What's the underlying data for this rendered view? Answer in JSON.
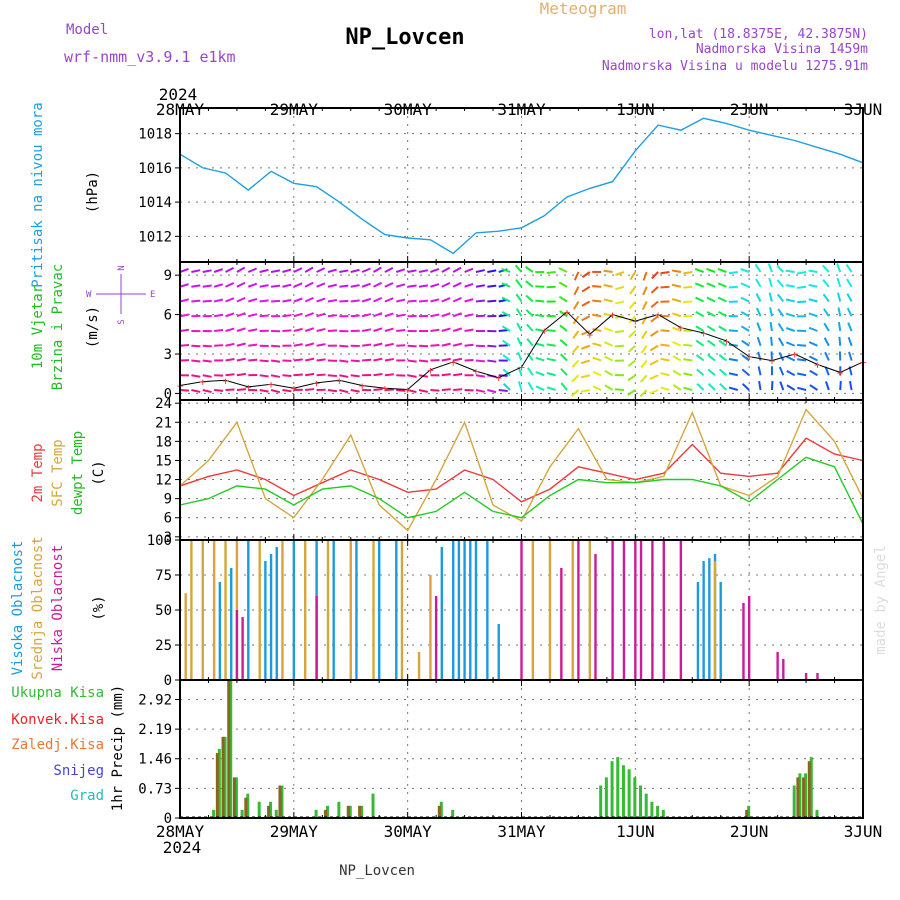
{
  "header": {
    "model_label": "Model",
    "model_name": "wrf-nmm_v3.9.1 e1km",
    "station": "NP_Lovcen",
    "meteogram_label": "Meteogram",
    "lonlat": "lon,lat (18.8375E, 42.3875N)",
    "elevation": "Nadmorska Visina 1459m",
    "model_elevation": "Nadmorska Visina u modelu 1275.91m",
    "footer_station": "NP_Lovcen",
    "credit": "made by Angel"
  },
  "colors": {
    "pressure": "#1e9fe0",
    "temp2m": "#ee3a3a",
    "sfc_temp": "#d6a63c",
    "dewpoint": "#22cc22",
    "high_cloud": "#1a9be0",
    "mid_cloud": "#d6a63c",
    "low_cloud": "#cc1a99",
    "total_precip": "#33bb33",
    "conv_precip": "#ee2222",
    "frozen_precip": "#ee7733",
    "snow": "#4444dd",
    "hail": "#22bbbb",
    "wind_speed_line": "#000000",
    "wind_speed_markers": "#ee3a3a"
  },
  "time_axis": {
    "year": "2024",
    "labels": [
      "28MAY",
      "29MAY",
      "30MAY",
      "31MAY",
      "1JUN",
      "2JUN",
      "3JUN"
    ]
  },
  "panels": {
    "pressure": {
      "label": "Pritisak na nivou mora",
      "unit": "(hPa)"
    },
    "wind": {
      "label1": "10m Vjetar",
      "label2": "Brzina i Pravac",
      "unit": "(m/s)",
      "compass_n": "N",
      "compass_s": "S",
      "compass_w": "W",
      "compass_e": "E"
    },
    "temperature": {
      "label1": "2m Temp",
      "label2": "SFC Temp",
      "label3": "dewpt Temp",
      "unit": "(C)"
    },
    "cloud": {
      "label1": "Visoka Oblacnost",
      "label2": "Srednja Oblacnost",
      "label3": "Niska Oblacnost",
      "unit": "(%)"
    },
    "precip": {
      "legend": [
        "Ukupna Kisa",
        "Konvek.Kisa",
        "Zaledj.Kisa",
        "Snijeg",
        "Grad"
      ],
      "unit": "1hr Precip (mm)"
    }
  },
  "chart_data": [
    {
      "type": "line",
      "title": "Pritisak na nivou mora",
      "ylabel": "(hPa)",
      "ylim": [
        1010.5,
        1019.5
      ],
      "yticks": [
        1012,
        1014,
        1016,
        1018
      ],
      "x_unit": "days since 28MAY 00UTC",
      "series": [
        {
          "name": "Pritisak na nivou mora",
          "x": [
            0,
            0.2,
            0.4,
            0.6,
            0.8,
            1.0,
            1.2,
            1.4,
            1.6,
            1.8,
            2.0,
            2.2,
            2.4,
            2.6,
            2.8,
            3.0,
            3.2,
            3.4,
            3.6,
            3.8,
            4.0,
            4.2,
            4.4,
            4.6,
            4.8,
            5.0,
            5.2,
            5.4,
            5.6,
            5.8,
            6.0
          ],
          "y": [
            1016.8,
            1016.0,
            1015.7,
            1014.7,
            1015.8,
            1015.1,
            1014.9,
            1014.0,
            1013.0,
            1012.1,
            1011.9,
            1011.8,
            1011.0,
            1012.2,
            1012.3,
            1012.5,
            1013.2,
            1014.3,
            1014.8,
            1015.2,
            1017.0,
            1018.5,
            1018.2,
            1018.9,
            1018.6,
            1018.2,
            1017.9,
            1017.6,
            1017.2,
            1016.8,
            1016.3
          ]
        }
      ]
    },
    {
      "type": "line",
      "title": "10m Vjetar Brzina i Pravac",
      "ylabel": "(m/s)",
      "ylim": [
        -0.5,
        10
      ],
      "yticks": [
        0,
        3,
        6,
        9
      ],
      "series": [
        {
          "name": "Brzina",
          "x": [
            0,
            0.2,
            0.4,
            0.6,
            0.8,
            1.0,
            1.2,
            1.4,
            1.6,
            1.8,
            2.0,
            2.2,
            2.4,
            2.6,
            2.8,
            3.0,
            3.2,
            3.4,
            3.6,
            3.8,
            4.0,
            4.2,
            4.4,
            4.6,
            4.8,
            5.0,
            5.2,
            5.4,
            5.6,
            5.8,
            6.0
          ],
          "y": [
            0.6,
            0.9,
            1.0,
            0.5,
            0.7,
            0.4,
            0.8,
            1.0,
            0.6,
            0.4,
            0.3,
            1.8,
            2.4,
            1.7,
            1.2,
            2.0,
            4.8,
            6.2,
            4.5,
            6.0,
            5.5,
            6.0,
            5.0,
            4.6,
            4.0,
            2.8,
            2.5,
            3.0,
            2.2,
            1.6,
            2.4
          ]
        }
      ]
    },
    {
      "type": "line",
      "title": "Temperature",
      "ylabel": "(C)",
      "ylim": [
        2.5,
        24.5
      ],
      "yticks": [
        3,
        6,
        9,
        12,
        15,
        18,
        21,
        24
      ],
      "series": [
        {
          "name": "2m Temp",
          "x": [
            0,
            0.25,
            0.5,
            0.75,
            1.0,
            1.25,
            1.5,
            1.75,
            2.0,
            2.25,
            2.5,
            2.75,
            3.0,
            3.25,
            3.5,
            3.75,
            4.0,
            4.25,
            4.5,
            4.75,
            5.0,
            5.25,
            5.5,
            5.75,
            6.0
          ],
          "y": [
            11.0,
            12.5,
            13.5,
            12.0,
            9.5,
            11.5,
            13.5,
            12.0,
            10.0,
            10.5,
            13.5,
            12.0,
            8.5,
            10.5,
            14.0,
            13.0,
            12.0,
            13.0,
            17.5,
            13.0,
            12.5,
            13.0,
            18.5,
            16.0,
            15.0
          ]
        },
        {
          "name": "SFC Temp",
          "x": [
            0,
            0.25,
            0.5,
            0.75,
            1.0,
            1.25,
            1.5,
            1.75,
            2.0,
            2.25,
            2.5,
            2.75,
            3.0,
            3.25,
            3.5,
            3.75,
            4.0,
            4.25,
            4.5,
            4.75,
            5.0,
            5.25,
            5.5,
            5.75,
            6.0
          ],
          "y": [
            11.0,
            15.0,
            21.0,
            9.0,
            6.0,
            12.0,
            19.0,
            8.0,
            4.0,
            12.0,
            21.0,
            8.0,
            5.5,
            14.0,
            20.0,
            12.0,
            11.5,
            12.5,
            22.5,
            11.0,
            9.5,
            12.5,
            23.0,
            18.0,
            9.0
          ]
        },
        {
          "name": "dewpt Temp",
          "x": [
            0,
            0.25,
            0.5,
            0.75,
            1.0,
            1.25,
            1.5,
            1.75,
            2.0,
            2.25,
            2.5,
            2.75,
            3.0,
            3.25,
            3.5,
            3.75,
            4.0,
            4.25,
            4.5,
            4.75,
            5.0,
            5.25,
            5.5,
            5.75,
            6.0
          ],
          "y": [
            8.0,
            9.0,
            11.0,
            10.5,
            8.0,
            10.5,
            11.0,
            9.0,
            6.0,
            7.0,
            10.0,
            7.0,
            6.0,
            9.5,
            12.0,
            11.5,
            11.5,
            12.0,
            12.0,
            11.0,
            8.5,
            12.0,
            15.5,
            14.0,
            5.0
          ]
        }
      ]
    },
    {
      "type": "bar",
      "title": "Oblacnost",
      "ylabel": "(%)",
      "ylim": [
        0,
        100
      ],
      "yticks": [
        0,
        25,
        50,
        75,
        100
      ],
      "series": [
        {
          "name": "Visoka Oblacnost",
          "x": [
            0.35,
            0.45,
            0.6,
            0.75,
            0.8,
            0.85,
            1.0,
            1.2,
            1.35,
            1.55,
            1.75,
            1.9,
            2.3,
            2.4,
            2.45,
            2.5,
            2.55,
            2.6,
            2.7,
            2.8,
            4.55,
            4.6,
            4.65,
            4.7,
            4.75
          ],
          "y": [
            70,
            80,
            100,
            85,
            90,
            95,
            100,
            100,
            100,
            100,
            100,
            100,
            95,
            100,
            100,
            100,
            100,
            100,
            100,
            40,
            70,
            85,
            87,
            90,
            70
          ]
        },
        {
          "name": "Srednja Oblacnost",
          "x": [
            0.05,
            0.1,
            0.2,
            0.3,
            0.4,
            0.5,
            0.7,
            0.9,
            1.1,
            1.3,
            1.5,
            1.7,
            1.95,
            2.1,
            2.2,
            3.1,
            3.25,
            3.45,
            3.6,
            4.7
          ],
          "y": [
            62,
            100,
            100,
            100,
            100,
            100,
            100,
            100,
            100,
            100,
            100,
            100,
            100,
            20,
            75,
            100,
            100,
            100,
            100,
            85
          ]
        },
        {
          "name": "Niska Oblacnost",
          "x": [
            0.5,
            0.55,
            1.2,
            2.25,
            3.0,
            3.35,
            3.5,
            3.65,
            3.8,
            3.9,
            4.0,
            4.05,
            4.15,
            4.25,
            4.4,
            4.95,
            5.0,
            5.25,
            5.3,
            5.5,
            5.6
          ],
          "y": [
            50,
            45,
            60,
            60,
            100,
            80,
            100,
            90,
            100,
            100,
            100,
            100,
            100,
            100,
            100,
            55,
            60,
            20,
            15,
            5,
            5
          ]
        }
      ]
    },
    {
      "type": "bar",
      "title": "1hr Precip",
      "ylabel": "1hr Precip (mm)",
      "ylim": [
        0,
        3.4
      ],
      "yticks": [
        0,
        0.73,
        1.46,
        2.19,
        2.92
      ],
      "series": [
        {
          "name": "Ukupna Kisa",
          "x": [
            0.3,
            0.35,
            0.4,
            0.45,
            0.5,
            0.55,
            0.6,
            0.7,
            0.8,
            0.85,
            0.9,
            1.2,
            1.3,
            1.4,
            1.5,
            1.6,
            1.7,
            2.3,
            2.4,
            3.7,
            3.75,
            3.8,
            3.85,
            3.9,
            3.95,
            4.0,
            4.05,
            4.1,
            4.15,
            4.2,
            4.25,
            5.0,
            5.4,
            5.45,
            5.5,
            5.55,
            5.6
          ],
          "y": [
            0.2,
            1.7,
            2.0,
            3.4,
            1.0,
            0.2,
            0.6,
            0.4,
            0.4,
            0.2,
            0.8,
            0.2,
            0.3,
            0.4,
            0.3,
            0.3,
            0.6,
            0.4,
            0.2,
            0.8,
            1.0,
            1.4,
            1.5,
            1.3,
            1.2,
            1.0,
            0.8,
            0.6,
            0.4,
            0.3,
            0.2,
            0.3,
            0.8,
            1.1,
            1.1,
            1.5,
            0.2
          ]
        },
        {
          "name": "Konvek.Kisa",
          "x": [
            0.35,
            0.4,
            0.45,
            0.5,
            0.6,
            0.8,
            0.9,
            1.3,
            1.5,
            1.6,
            2.3,
            5.0,
            5.45,
            5.5,
            5.55
          ],
          "y": [
            1.6,
            2.0,
            3.4,
            1.0,
            0.5,
            0.3,
            0.8,
            0.2,
            0.3,
            0.3,
            0.3,
            0.2,
            1.0,
            1.0,
            1.4
          ]
        },
        {
          "name": "Zaledj.Kisa",
          "x": [],
          "y": []
        },
        {
          "name": "Snijeg",
          "x": [],
          "y": []
        },
        {
          "name": "Grad",
          "x": [],
          "y": []
        }
      ]
    }
  ]
}
